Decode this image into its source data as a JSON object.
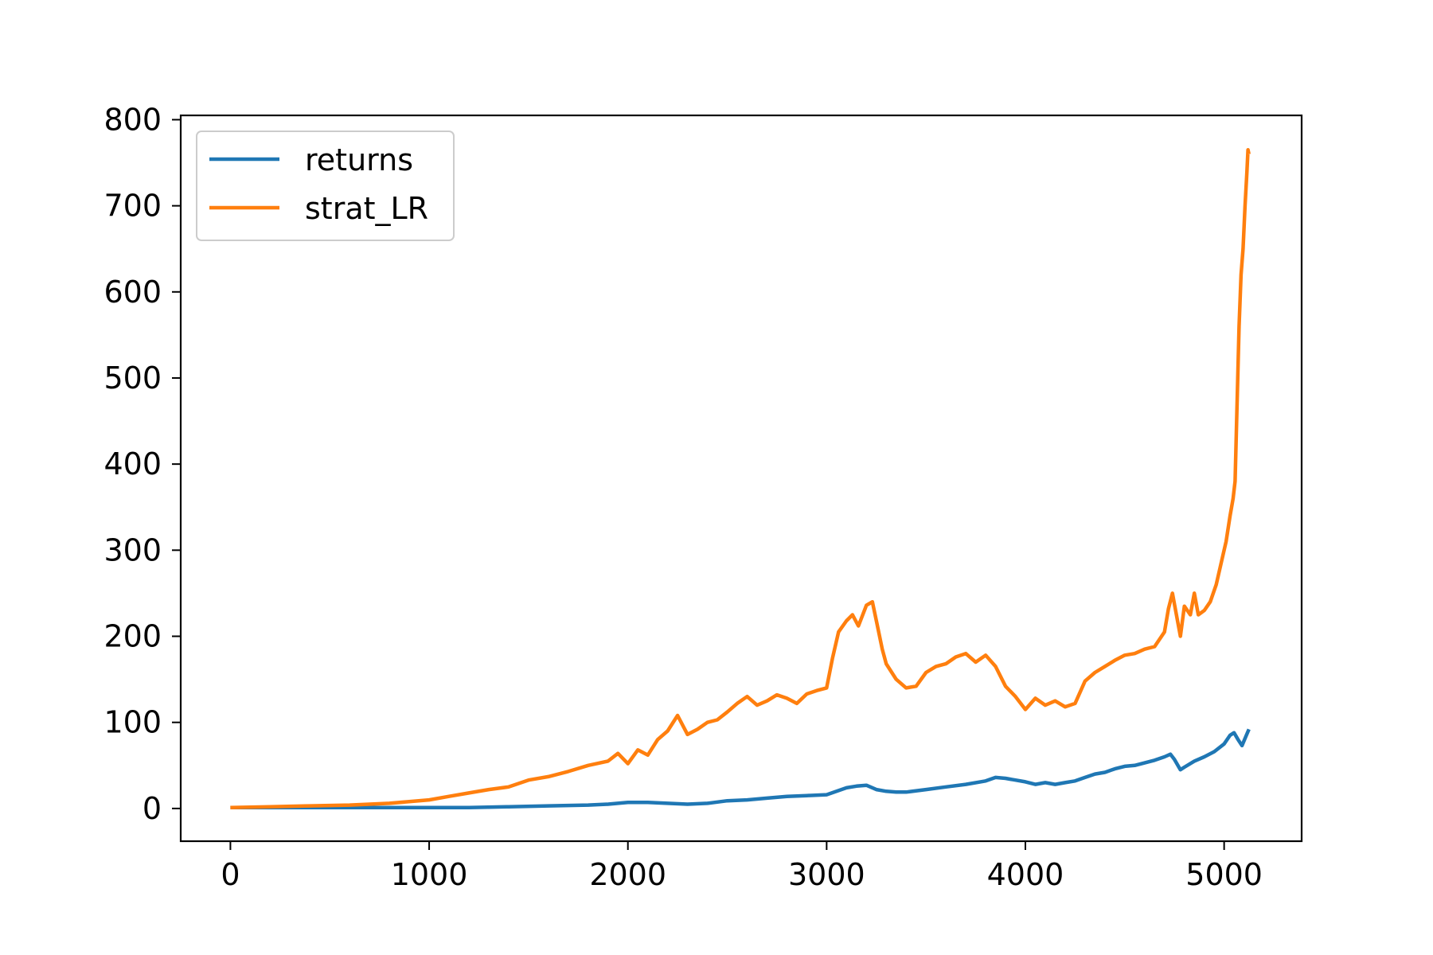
{
  "chart_data": {
    "type": "line",
    "title": "",
    "xlabel": "",
    "ylabel": "",
    "xlim": [
      -250,
      5390
    ],
    "ylim": [
      -38,
      805
    ],
    "xticks": [
      0,
      1000,
      2000,
      3000,
      4000,
      5000
    ],
    "yticks": [
      0,
      100,
      200,
      300,
      400,
      500,
      600,
      700,
      800
    ],
    "grid": false,
    "legend_position": "upper-left",
    "series": [
      {
        "name": "returns",
        "color": "#1f77b4",
        "x": [
          0,
          200,
          400,
          600,
          800,
          1000,
          1200,
          1400,
          1600,
          1800,
          1900,
          2000,
          2100,
          2200,
          2300,
          2400,
          2500,
          2600,
          2700,
          2800,
          2900,
          3000,
          3050,
          3100,
          3150,
          3200,
          3250,
          3300,
          3350,
          3400,
          3500,
          3600,
          3700,
          3800,
          3850,
          3900,
          3950,
          4000,
          4050,
          4100,
          4150,
          4200,
          4250,
          4300,
          4350,
          4400,
          4450,
          4500,
          4550,
          4600,
          4650,
          4700,
          4730,
          4750,
          4780,
          4800,
          4850,
          4900,
          4950,
          5000,
          5030,
          5050,
          5070,
          5090,
          5110,
          5125
        ],
        "y": [
          1,
          1,
          1,
          1,
          1,
          1,
          1,
          2,
          3,
          4,
          5,
          7,
          7,
          6,
          5,
          6,
          9,
          10,
          12,
          14,
          15,
          16,
          20,
          24,
          26,
          27,
          22,
          20,
          19,
          19,
          22,
          25,
          28,
          32,
          36,
          35,
          33,
          31,
          28,
          30,
          28,
          30,
          32,
          36,
          40,
          42,
          46,
          49,
          50,
          53,
          56,
          60,
          63,
          57,
          45,
          48,
          55,
          60,
          66,
          75,
          85,
          88,
          80,
          73,
          84,
          92
        ]
      },
      {
        "name": "strat_LR",
        "color": "#ff7f0e",
        "x": [
          0,
          200,
          400,
          600,
          800,
          1000,
          1100,
          1200,
          1300,
          1400,
          1500,
          1600,
          1700,
          1800,
          1900,
          1950,
          2000,
          2050,
          2100,
          2150,
          2200,
          2250,
          2300,
          2350,
          2400,
          2450,
          2500,
          2550,
          2600,
          2650,
          2700,
          2750,
          2800,
          2850,
          2900,
          2950,
          3000,
          3030,
          3060,
          3100,
          3130,
          3160,
          3200,
          3230,
          3250,
          3280,
          3300,
          3350,
          3400,
          3450,
          3500,
          3550,
          3600,
          3650,
          3700,
          3750,
          3800,
          3850,
          3900,
          3950,
          4000,
          4050,
          4100,
          4150,
          4200,
          4250,
          4300,
          4350,
          4400,
          4450,
          4500,
          4550,
          4600,
          4650,
          4700,
          4720,
          4740,
          4760,
          4780,
          4800,
          4830,
          4850,
          4870,
          4900,
          4930,
          4960,
          4990,
          5010,
          5030,
          5045,
          5055,
          5065,
          5075,
          5085,
          5095,
          5105,
          5115,
          5120,
          5125
        ],
        "y": [
          1,
          2,
          3,
          4,
          6,
          10,
          14,
          18,
          22,
          25,
          33,
          37,
          43,
          50,
          55,
          64,
          52,
          68,
          62,
          80,
          90,
          108,
          86,
          92,
          100,
          103,
          112,
          122,
          130,
          120,
          125,
          132,
          128,
          122,
          133,
          137,
          140,
          175,
          205,
          218,
          225,
          212,
          236,
          240,
          218,
          185,
          168,
          150,
          140,
          142,
          158,
          165,
          168,
          176,
          180,
          170,
          178,
          165,
          142,
          130,
          115,
          128,
          120,
          125,
          118,
          122,
          148,
          158,
          165,
          172,
          178,
          180,
          185,
          188,
          205,
          232,
          250,
          225,
          200,
          235,
          225,
          250,
          225,
          230,
          240,
          260,
          290,
          310,
          340,
          360,
          380,
          470,
          560,
          620,
          650,
          700,
          740,
          765,
          760
        ]
      }
    ]
  }
}
